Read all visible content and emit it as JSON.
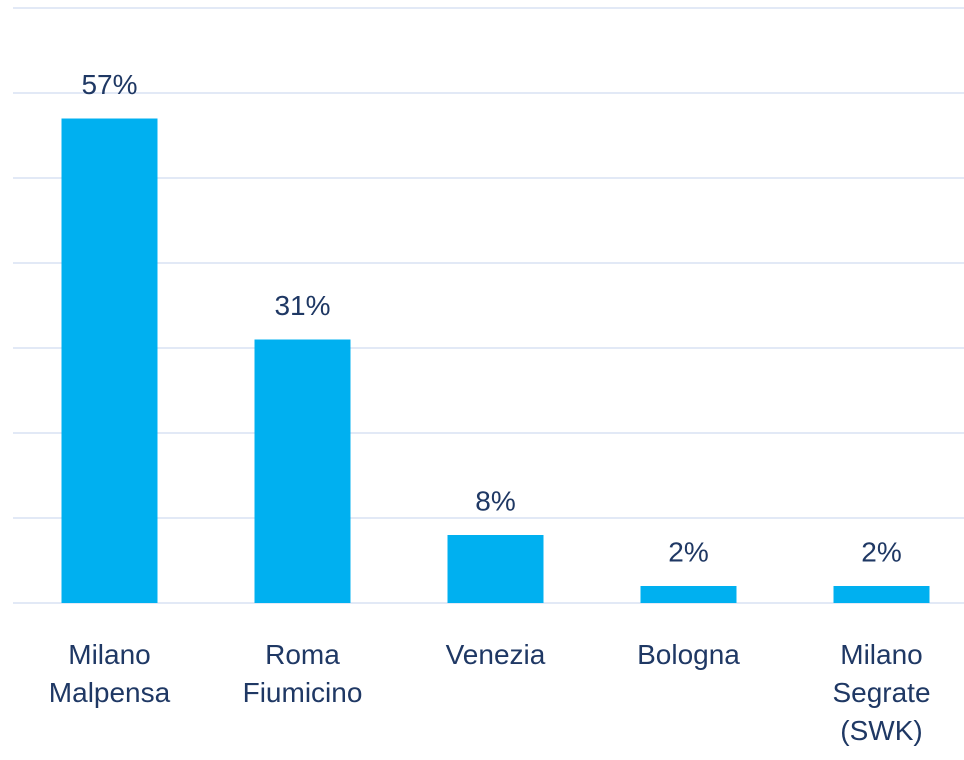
{
  "chart_data": {
    "type": "bar",
    "categories": [
      "Milano Malpensa",
      "Roma Fiumicino",
      "Venezia",
      "Bologna",
      "Milano Segrate (SWK)"
    ],
    "values": [
      57,
      31,
      8,
      2,
      2
    ],
    "value_labels": [
      "57%",
      "31%",
      "8%",
      "2%",
      "2%"
    ],
    "color": "#00b0f0",
    "ylim": [
      0,
      70
    ],
    "yticks": [
      0,
      10,
      20,
      30,
      40,
      50,
      60,
      70
    ],
    "grid": true
  }
}
